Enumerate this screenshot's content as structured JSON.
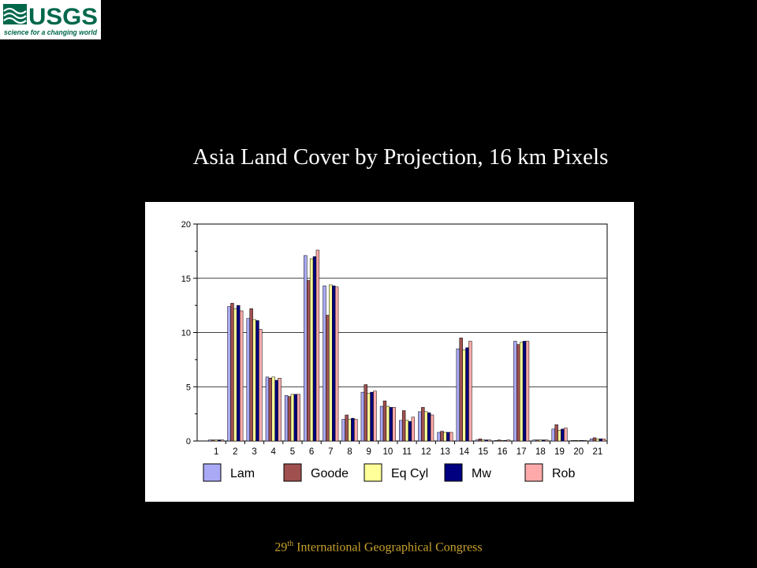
{
  "header": {
    "logo_text": "USGS",
    "logo_tagline": "science for a changing world"
  },
  "slide": {
    "title": "Asia Land Cover by Projection, 16 km Pixels"
  },
  "footer": {
    "number": "29",
    "suffix": "th",
    "text": " International Geographical Congress"
  },
  "chart_data": {
    "type": "bar",
    "title": "Asia Land Cover by Projection, 16 km Pixels",
    "xlabel": "",
    "ylabel": "",
    "ylim": [
      0,
      20
    ],
    "yticks": [
      0,
      5,
      10,
      15,
      20
    ],
    "grid": true,
    "legend_position": "bottom",
    "categories": [
      "1",
      "2",
      "3",
      "4",
      "5",
      "6",
      "7",
      "8",
      "9",
      "10",
      "11",
      "12",
      "13",
      "14",
      "15",
      "16",
      "17",
      "18",
      "19",
      "20",
      "21"
    ],
    "series": [
      {
        "name": "Lam",
        "color": "#a9a9f5",
        "values": [
          0.1,
          12.4,
          11.3,
          5.9,
          4.2,
          17.1,
          14.3,
          2.0,
          4.5,
          3.2,
          1.9,
          2.7,
          0.8,
          8.5,
          0.1,
          0.05,
          9.2,
          0.1,
          1.1,
          0.05,
          0.2
        ]
      },
      {
        "name": "Goode",
        "color": "#a0504f",
        "values": [
          0.1,
          12.7,
          12.2,
          5.8,
          4.1,
          14.8,
          11.6,
          2.4,
          5.2,
          3.7,
          2.8,
          3.1,
          0.9,
          9.5,
          0.2,
          0.1,
          8.9,
          0.1,
          1.5,
          0.05,
          0.3
        ]
      },
      {
        "name": "Eq Cyl",
        "color": "#ffff99",
        "values": [
          0.1,
          12.2,
          11.2,
          5.9,
          4.3,
          16.8,
          14.4,
          2.0,
          4.4,
          3.2,
          1.9,
          2.7,
          0.8,
          8.4,
          0.1,
          0.05,
          9.1,
          0.1,
          1.0,
          0.05,
          0.2
        ]
      },
      {
        "name": "Mw",
        "color": "#000080",
        "values": [
          0.1,
          12.5,
          11.1,
          5.6,
          4.3,
          17.0,
          14.3,
          2.1,
          4.5,
          3.1,
          1.8,
          2.6,
          0.8,
          8.6,
          0.1,
          0.05,
          9.2,
          0.1,
          1.1,
          0.05,
          0.2
        ]
      },
      {
        "name": "Rob",
        "color": "#ffaaaa",
        "values": [
          0.1,
          12.0,
          10.3,
          5.8,
          4.3,
          17.6,
          14.2,
          2.0,
          4.6,
          3.1,
          2.2,
          2.4,
          0.8,
          9.2,
          0.1,
          0.1,
          9.2,
          0.1,
          1.2,
          0.05,
          0.2
        ]
      }
    ]
  }
}
